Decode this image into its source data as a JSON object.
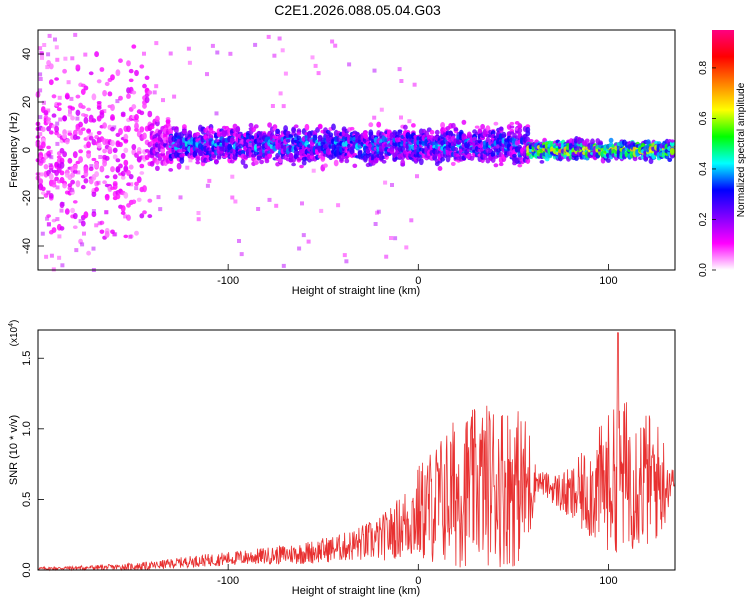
{
  "title": "C2E1.2026.088.05.04.G03",
  "chart_data": [
    {
      "type": "heatmap",
      "title": "C2E1.2026.088.05.04.G03",
      "xlabel": "Height of straight line (km)",
      "ylabel": "Frequency (Hz)",
      "xlim": [
        -200,
        135
      ],
      "ylim": [
        -50,
        50
      ],
      "xticks": [
        -100,
        0,
        100
      ],
      "yticks": [
        -40,
        -20,
        0,
        20,
        40
      ],
      "colorbar": {
        "label": "Normalized spectral amplitude",
        "range": [
          0,
          0.95
        ],
        "ticks": [
          0.0,
          0.2,
          0.4,
          0.6,
          0.8
        ],
        "tick_labels": [
          "0.0",
          "0.2",
          "0.4",
          "0.6",
          "0.8"
        ],
        "colormap": [
          "#ffffff",
          "#ff00ff",
          "#7f00ff",
          "#0000ff",
          "#00ffff",
          "#00ff00",
          "#ffff00",
          "#ff8000",
          "#ff0000",
          "#ff0080"
        ]
      },
      "band_segments": [
        {
          "x_start": -200,
          "x_end": -140,
          "center_hz": 0,
          "half_width_hz": 50,
          "amplitude": 0.1
        },
        {
          "x_start": -140,
          "x_end": -130,
          "center_hz": 2,
          "half_width_hz": 12,
          "amplitude": 0.18
        },
        {
          "x_start": -130,
          "x_end": 58,
          "center_hz": 2,
          "half_width_hz": 8,
          "amplitude": 0.3
        },
        {
          "x_start": 58,
          "x_end": 135,
          "center_hz": 0,
          "half_width_hz": 4,
          "amplitude": 0.5
        }
      ],
      "grid": false
    },
    {
      "type": "line",
      "xlabel": "Height of straight line (km)",
      "ylabel": "SNR (10 * v/v)",
      "y_multiplier": "(x10",
      "y_multiplier_exp": "4",
      "y_multiplier_close": ")",
      "xlim": [
        -200,
        135
      ],
      "ylim": [
        0,
        1.7
      ],
      "xticks": [
        -100,
        0,
        100
      ],
      "yticks": [
        0.0,
        0.5,
        1.0,
        1.5
      ],
      "ytick_labels": [
        "0.0",
        "0.5",
        "1.0",
        "1.5"
      ],
      "color": "#e83030",
      "series": [
        {
          "x": [
            -200,
            -160,
            -140,
            -120,
            -100,
            -80,
            -60,
            -40,
            -20,
            -10,
            0,
            10,
            20,
            30,
            40,
            50,
            58,
            62,
            70,
            80,
            90,
            100,
            110,
            120,
            128,
            135
          ],
          "y": [
            0.01,
            0.02,
            0.03,
            0.06,
            0.08,
            0.1,
            0.12,
            0.16,
            0.22,
            0.3,
            0.4,
            0.48,
            0.55,
            0.6,
            0.62,
            0.6,
            0.58,
            0.64,
            0.58,
            0.52,
            0.56,
            0.62,
            0.68,
            0.64,
            0.62,
            0.64
          ],
          "amplitude": [
            0.01,
            0.02,
            0.03,
            0.04,
            0.05,
            0.06,
            0.08,
            0.1,
            0.16,
            0.22,
            0.35,
            0.45,
            0.55,
            0.55,
            0.6,
            0.58,
            0.5,
            0.08,
            0.1,
            0.2,
            0.35,
            0.5,
            0.55,
            0.5,
            0.4,
            0.03
          ]
        }
      ],
      "peak": {
        "x": 105,
        "y": 1.68
      },
      "grid": false
    }
  ]
}
